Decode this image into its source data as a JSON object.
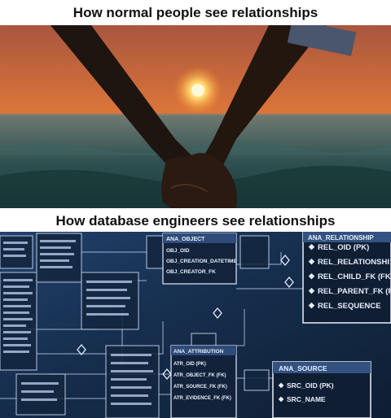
{
  "meme": {
    "top_caption": "How normal people see relationships",
    "bottom_caption": "How database engineers see relationships"
  },
  "schema_panel": {
    "relationship_table": {
      "header": "ANA_RELATIONSHIP",
      "fields": [
        "REL_OID (PK)",
        "REL_RELATIONSHI",
        "REL_CHILD_FK (FK",
        "REL_PARENT_FK (F",
        "REL_SEQUENCE"
      ]
    },
    "object_table": {
      "header": "ANA_OBJECT",
      "fields": [
        "OBJ_OID",
        "OBJ_CREATION_DATETIME",
        "OBJ_CREATOR_FK"
      ]
    },
    "attribution_table": {
      "header": "ANA_ATTRIBUTION",
      "fields": [
        "ATR_OID (PK)",
        "ATR_OBJECT_FK (FK)",
        "ATR_SOURCE_FK (FK)",
        "ATR_EVIDENCE_FK (FK)"
      ]
    },
    "source_table": {
      "header": "ANA_SOURCE",
      "fields": [
        "SRC_OID (PK)",
        "SRC_NAME"
      ]
    }
  },
  "colors": {
    "sunset_top": "#b4583a",
    "sunset_glow": "#f08a2e",
    "sea": "#2b4d4c",
    "screen_bg": "#0e2340",
    "schema_line": "#dfe9ff"
  }
}
